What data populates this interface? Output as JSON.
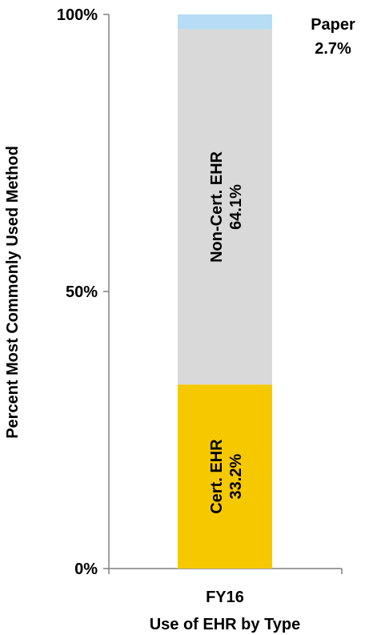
{
  "chart_data": {
    "type": "bar",
    "stacked": true,
    "categories": [
      "FY16"
    ],
    "series": [
      {
        "name": "Cert. EHR",
        "value_label": "33.2%",
        "values": [
          33.2
        ],
        "color": "#f5c800"
      },
      {
        "name": "Non-Cert. EHR",
        "value_label": "64.1%",
        "values": [
          64.1
        ],
        "color": "#d9d9d9"
      },
      {
        "name": "Paper",
        "value_label": "2.7%",
        "values": [
          2.7
        ],
        "color": "#b7dcf5"
      }
    ],
    "xlabel": "Use of EHR by Type",
    "ylabel": "Percent Most Commonly Used Method",
    "ylim": [
      0,
      100
    ],
    "yticks": [
      {
        "value": 0,
        "label": "0%"
      },
      {
        "value": 50,
        "label": "50%"
      },
      {
        "value": 100,
        "label": "100%"
      }
    ],
    "grid": false,
    "legend": "none",
    "axis_color": "#808080"
  }
}
